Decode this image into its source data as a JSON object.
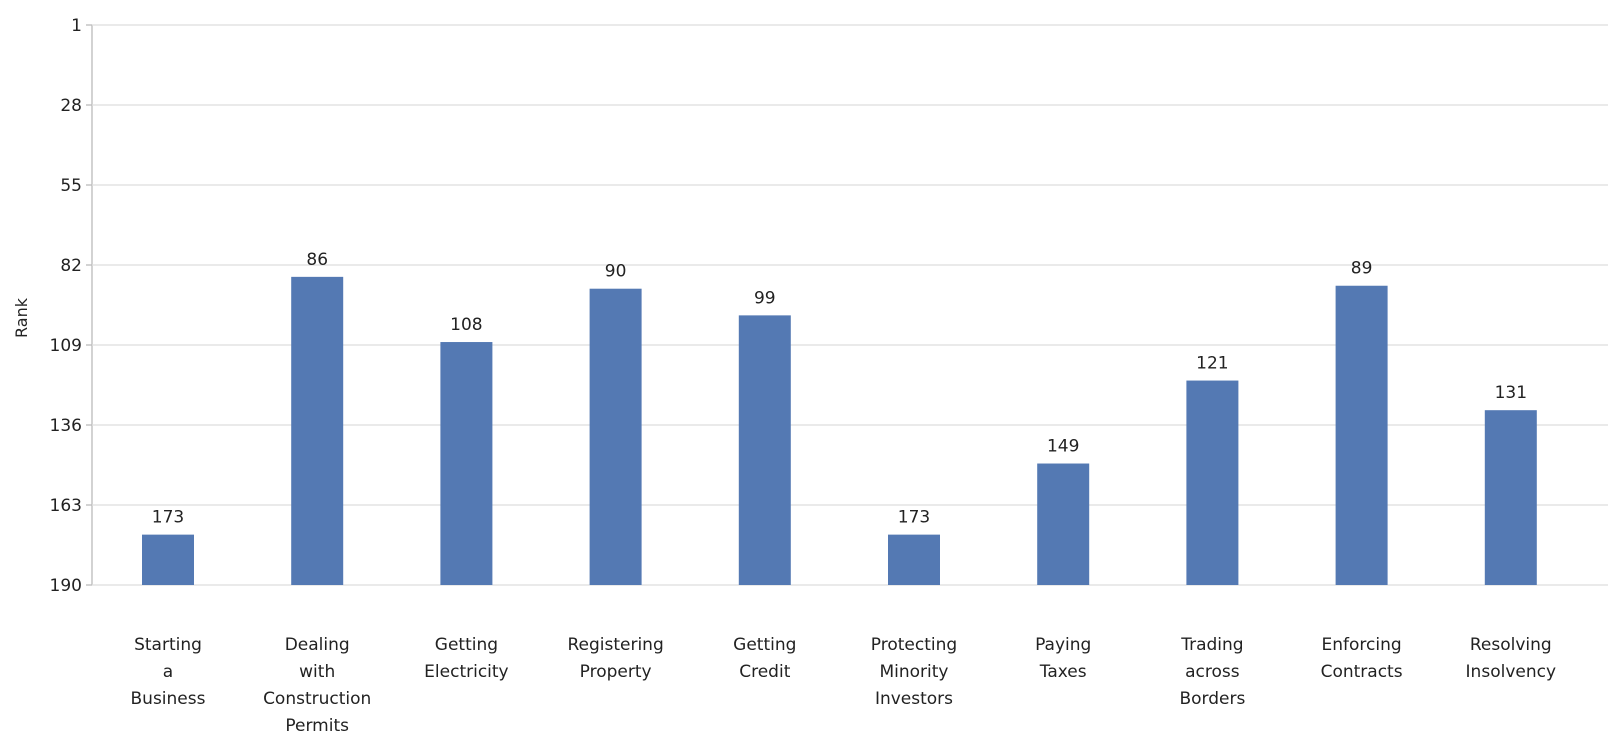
{
  "chart_data": {
    "type": "bar",
    "ylabel": "Rank",
    "y_axis_inverted": true,
    "ylim": [
      1,
      190
    ],
    "yticks": [
      1,
      28,
      55,
      82,
      109,
      136,
      163,
      190
    ],
    "grid": true,
    "bar_color": "#5479b3",
    "categories": [
      [
        "Starting",
        "a",
        "Business"
      ],
      [
        "Dealing",
        "with",
        "Construction",
        "Permits"
      ],
      [
        "Getting",
        "Electricity"
      ],
      [
        "Registering",
        "Property"
      ],
      [
        "Getting",
        "Credit"
      ],
      [
        "Protecting",
        "Minority",
        "Investors"
      ],
      [
        "Paying",
        "Taxes"
      ],
      [
        "Trading",
        "across",
        "Borders"
      ],
      [
        "Enforcing",
        "Contracts"
      ],
      [
        "Resolving",
        "Insolvency"
      ]
    ],
    "values": [
      173,
      86,
      108,
      90,
      99,
      173,
      149,
      121,
      89,
      131
    ]
  }
}
